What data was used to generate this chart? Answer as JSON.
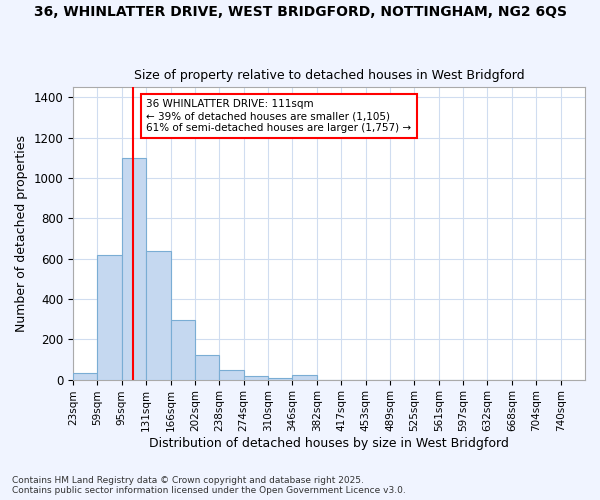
{
  "title_line1": "36, WHINLATTER DRIVE, WEST BRIDGFORD, NOTTINGHAM, NG2 6QS",
  "title_line2": "Size of property relative to detached houses in West Bridgford",
  "xlabel": "Distribution of detached houses by size in West Bridgford",
  "ylabel": "Number of detached properties",
  "footnote": "Contains HM Land Registry data © Crown copyright and database right 2025.\nContains public sector information licensed under the Open Government Licence v3.0.",
  "bin_labels": [
    "23sqm",
    "59sqm",
    "95sqm",
    "131sqm",
    "166sqm",
    "202sqm",
    "238sqm",
    "274sqm",
    "310sqm",
    "346sqm",
    "382sqm",
    "417sqm",
    "453sqm",
    "489sqm",
    "525sqm",
    "561sqm",
    "597sqm",
    "632sqm",
    "668sqm",
    "704sqm",
    "740sqm"
  ],
  "bar_values": [
    35,
    620,
    1100,
    640,
    295,
    120,
    50,
    20,
    10,
    25,
    0,
    0,
    0,
    0,
    0,
    0,
    0,
    0,
    0,
    0
  ],
  "bar_color": "#c5d8f0",
  "bar_edge_color": "#7aadd4",
  "vline_x": 111,
  "vline_color": "red",
  "annotation_text": "36 WHINLATTER DRIVE: 111sqm\n← 39% of detached houses are smaller (1,105)\n61% of semi-detached houses are larger (1,757) →",
  "annotation_box_color": "red",
  "plot_bg_color": "#ffffff",
  "fig_bg_color": "#f0f4ff",
  "grid_color": "#d0ddf0",
  "ylim": [
    0,
    1450
  ],
  "yticks": [
    0,
    200,
    400,
    600,
    800,
    1000,
    1200,
    1400
  ],
  "bin_width": 36,
  "n_bins": 20
}
